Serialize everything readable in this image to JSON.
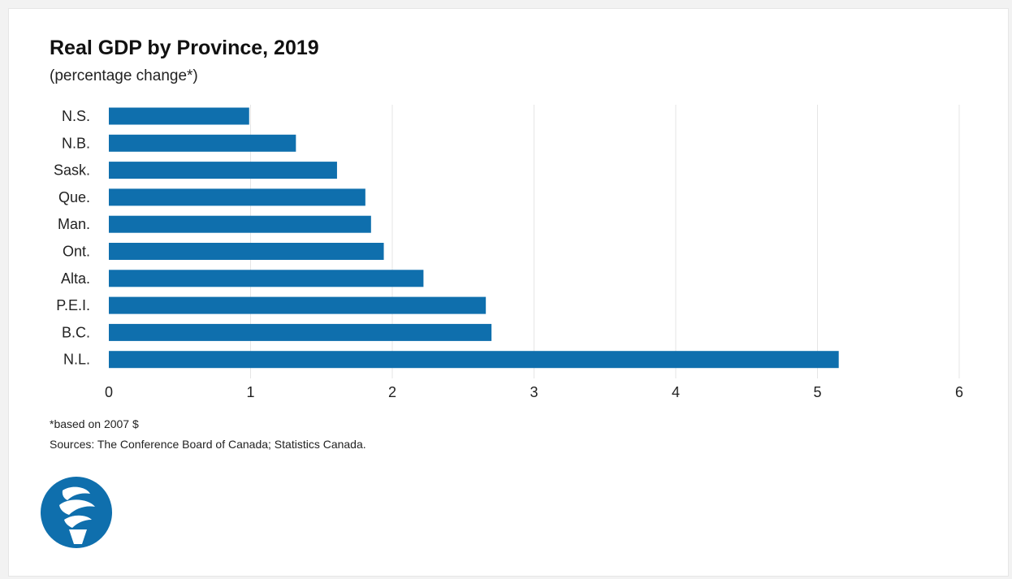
{
  "chart_data": {
    "type": "bar",
    "orientation": "horizontal",
    "title": "Real GDP by Province, 2019",
    "subtitle": "(percentage change*)",
    "categories": [
      "N.S.",
      "N.B.",
      "Sask.",
      "Que.",
      "Man.",
      "Ont.",
      "Alta.",
      "P.E.I.",
      "B.C.",
      "N.L."
    ],
    "values": [
      0.99,
      1.32,
      1.61,
      1.81,
      1.85,
      1.94,
      2.22,
      2.66,
      2.7,
      5.15
    ],
    "xlim": [
      0,
      6
    ],
    "xticks": [
      "0",
      "1",
      "2",
      "3",
      "4",
      "5",
      "6"
    ],
    "grid": "vertical",
    "bar_color": "#0f6fad",
    "grid_color": "#e5e5e5"
  },
  "footnote": "*based on 2007 $",
  "sources": "Sources: The Conference Board of Canada; Statistics Canada.",
  "logo": {
    "icon": "torch-logo-icon",
    "color": "#0f6fad"
  }
}
